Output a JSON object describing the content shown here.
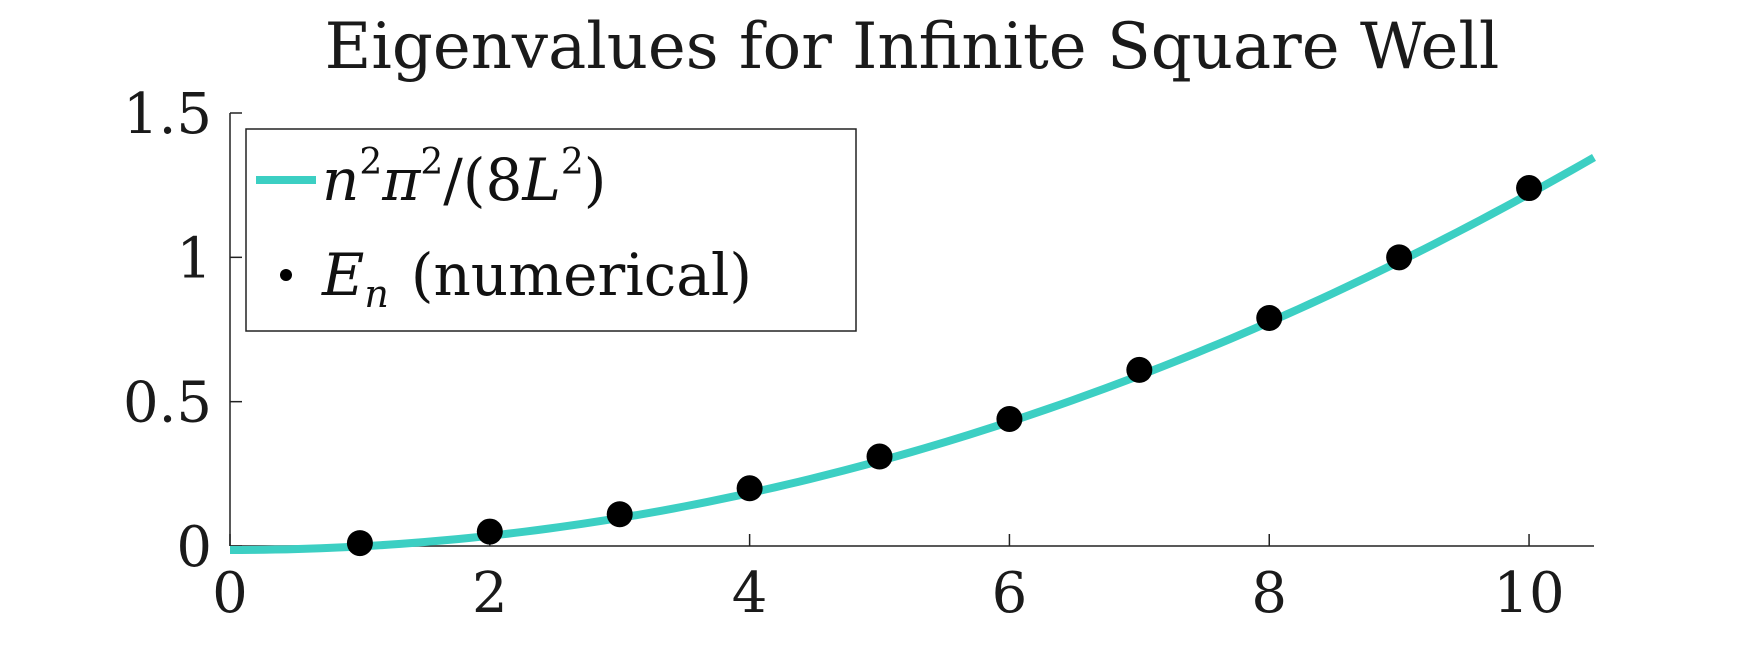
{
  "chart_data": {
    "type": "line",
    "title": "Eigenvalues for Infinite Square Well",
    "xlabel": "",
    "ylabel": "",
    "xlim": [
      0,
      10.5
    ],
    "ylim": [
      0,
      1.5
    ],
    "xticks": [
      0,
      2,
      4,
      6,
      8,
      10
    ],
    "yticks": [
      0,
      0.5,
      1,
      1.5
    ],
    "xtick_labels": [
      "0",
      "2",
      "4",
      "6",
      "8",
      "10"
    ],
    "ytick_labels": [
      "0",
      "0.5",
      "1",
      "1.5"
    ],
    "grid": false,
    "legend_position": "top-left",
    "series": [
      {
        "name": "n²π²/(8L²)",
        "kind": "line",
        "color": "#3ccfc3",
        "formula": "y = 0.01234 * x^2",
        "x": [
          0,
          1,
          2,
          3,
          4,
          5,
          6,
          7,
          8,
          9,
          10,
          10.5
        ],
        "y": [
          0,
          0.0123,
          0.0493,
          0.111,
          0.197,
          0.308,
          0.444,
          0.604,
          0.79,
          0.999,
          1.234,
          1.36
        ]
      },
      {
        "name": "E_n (numerical)",
        "kind": "scatter",
        "color": "#000000",
        "x": [
          1,
          2,
          3,
          4,
          5,
          6,
          7,
          8,
          9,
          10
        ],
        "y": [
          0.01,
          0.05,
          0.11,
          0.2,
          0.31,
          0.44,
          0.61,
          0.79,
          1.0,
          1.24
        ]
      }
    ],
    "legend": {
      "line_prefix": "n",
      "line_sup1": "2",
      "line_mid": "π",
      "line_sup2": "2",
      "line_denom_open": "/(8",
      "line_denom_var": "L",
      "line_sup3": "2",
      "line_close": ")",
      "points_var": "E",
      "points_sub": "n",
      "points_suffix": "(numerical)"
    }
  }
}
